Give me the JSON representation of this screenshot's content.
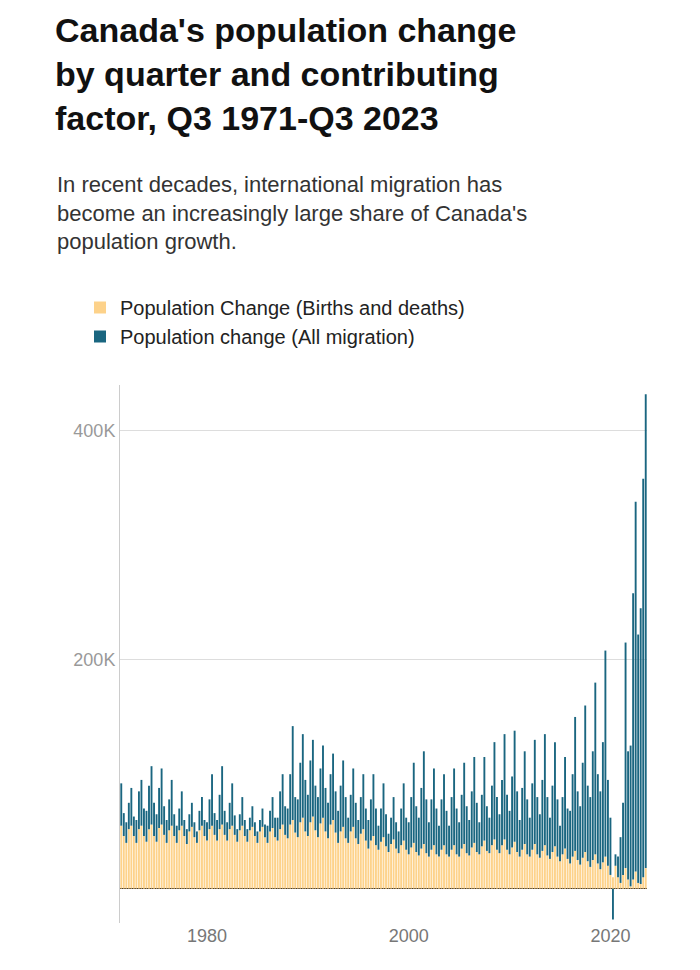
{
  "chart_data": {
    "type": "bar",
    "title": "Canada's population change by quarter and contributing factor, Q3 1971-Q3 2023",
    "subtitle": "In recent decades, international migration has become an increasingly large share of Canada's population growth.",
    "categories": [
      null,
      null,
      null,
      null,
      null,
      null,
      null,
      null,
      null,
      null,
      null,
      null,
      null,
      null,
      null,
      null,
      null,
      null,
      null,
      null,
      null,
      null,
      null,
      null,
      null,
      null,
      null,
      null,
      null,
      null,
      null,
      null,
      null,
      null,
      "1980",
      null,
      null,
      null,
      null,
      null,
      null,
      null,
      null,
      null,
      null,
      null,
      null,
      null,
      null,
      null,
      null,
      null,
      null,
      null,
      null,
      null,
      null,
      null,
      null,
      null,
      null,
      null,
      null,
      null,
      null,
      null,
      null,
      null,
      null,
      null,
      null,
      null,
      null,
      null,
      null,
      null,
      null,
      null,
      null,
      null,
      null,
      null,
      null,
      null,
      null,
      null,
      null,
      null,
      null,
      null,
      null,
      null,
      null,
      null,
      null,
      null,
      null,
      null,
      null,
      null,
      null,
      null,
      null,
      null,
      null,
      null,
      null,
      null,
      null,
      null,
      null,
      null,
      null,
      null,
      "2000",
      null,
      null,
      null,
      null,
      null,
      null,
      null,
      null,
      null,
      null,
      null,
      null,
      null,
      null,
      null,
      null,
      null,
      null,
      null,
      null,
      null,
      null,
      null,
      null,
      null,
      null,
      null,
      null,
      null,
      null,
      null,
      null,
      null,
      null,
      null,
      null,
      null,
      null,
      null,
      null,
      null,
      null,
      null,
      null,
      null,
      null,
      null,
      null,
      null,
      null,
      null,
      null,
      null,
      null,
      null,
      null,
      null,
      null,
      null,
      null,
      null,
      null,
      null,
      null,
      null,
      null,
      null,
      null,
      null,
      null,
      null,
      null,
      null,
      null,
      null,
      null,
      null,
      null,
      null,
      "2020",
      null,
      null,
      null,
      null,
      null,
      null,
      null,
      null,
      null,
      null,
      null,
      null,
      null,
      null
    ],
    "series": [
      {
        "name": "Population Change (Births and deaths)",
        "color": "#fdd28a",
        "values": [
          55000,
          46000,
          40000,
          52000,
          55000,
          46000,
          40000,
          52000,
          55000,
          46000,
          41000,
          52000,
          56000,
          46000,
          41000,
          53000,
          56000,
          47000,
          40000,
          51000,
          55000,
          46000,
          40000,
          51000,
          55000,
          46000,
          39000,
          50000,
          54000,
          45000,
          40000,
          51000,
          55000,
          46000,
          42000,
          52000,
          55000,
          47000,
          42000,
          52000,
          56000,
          47000,
          42000,
          52000,
          55000,
          47000,
          41000,
          51000,
          55000,
          46000,
          41000,
          51000,
          54000,
          46000,
          40000,
          50000,
          54000,
          45000,
          40000,
          50000,
          53000,
          45000,
          42000,
          52000,
          56000,
          47000,
          44000,
          56000,
          60000,
          49000,
          45000,
          58000,
          62000,
          50000,
          46000,
          58000,
          63000,
          51000,
          45000,
          57000,
          62000,
          50000,
          44000,
          56000,
          60000,
          49000,
          40000,
          50000,
          54000,
          44000,
          40000,
          50000,
          54000,
          44000,
          39000,
          48000,
          52000,
          42000,
          35000,
          42000,
          46000,
          38000,
          34000,
          41000,
          45000,
          37000,
          32000,
          39000,
          43000,
          35000,
          31000,
          38000,
          42000,
          34000,
          30000,
          36000,
          40000,
          32000,
          29000,
          35000,
          39000,
          31000,
          28000,
          34000,
          38000,
          30000,
          28000,
          34000,
          38000,
          30000,
          28000,
          34000,
          38000,
          30000,
          28000,
          35000,
          39000,
          31000,
          29000,
          36000,
          40000,
          32000,
          30000,
          37000,
          42000,
          33000,
          31000,
          38000,
          43000,
          34000,
          31000,
          38000,
          43000,
          34000,
          30000,
          36000,
          41000,
          32000,
          28000,
          34000,
          39000,
          30000,
          28000,
          34000,
          39000,
          30000,
          27000,
          33000,
          38000,
          29000,
          26000,
          32000,
          37000,
          28000,
          24000,
          30000,
          35000,
          26000,
          22000,
          28000,
          33000,
          25000,
          21000,
          27000,
          32000,
          24000,
          19000,
          25000,
          30000,
          22000,
          17000,
          23000,
          28000,
          20000,
          12000,
          10000,
          20000,
          10000,
          5000,
          12000,
          18000,
          8000,
          2000,
          8000,
          15000,
          5000,
          4000,
          10000,
          18000
        ]
      },
      {
        "name": "Population change (All migration)",
        "color": "#1a6680",
        "values": [
          37000,
          20000,
          18000,
          23000,
          33000,
          17000,
          20000,
          33000,
          40000,
          24000,
          27000,
          38000,
          51000,
          29000,
          24000,
          35000,
          49000,
          25000,
          20000,
          27000,
          40000,
          19000,
          15000,
          19000,
          30000,
          14000,
          13000,
          15000,
          21000,
          13000,
          10000,
          17000,
          25000,
          14000,
          16000,
          26000,
          45000,
          19000,
          18000,
          30000,
          51000,
          21000,
          16000,
          23000,
          37000,
          17000,
          11000,
          14000,
          25000,
          14000,
          11000,
          11000,
          18000,
          12000,
          10000,
          10000,
          16000,
          11000,
          15000,
          18000,
          27000,
          17000,
          20000,
          33000,
          44000,
          25000,
          26000,
          44000,
          82000,
          31000,
          33000,
          52000,
          73000,
          45000,
          36000,
          54000,
          67000,
          39000,
          35000,
          48000,
          63000,
          38000,
          31000,
          44000,
          58000,
          36000,
          28000,
          40000,
          58000,
          36000,
          22000,
          32000,
          51000,
          31000,
          21000,
          32000,
          48000,
          28000,
          25000,
          36000,
          54000,
          32000,
          21000,
          29000,
          47000,
          28000,
          16000,
          23000,
          37000,
          23000,
          19000,
          32000,
          50000,
          28000,
          28000,
          44000,
          70000,
          40000,
          33000,
          53000,
          81000,
          47000,
          30000,
          44000,
          67000,
          40000,
          27000,
          44000,
          62000,
          38000,
          27000,
          46000,
          67000,
          40000,
          30000,
          47000,
          71000,
          41000,
          31000,
          49000,
          75000,
          43000,
          28000,
          45000,
          73000,
          39000,
          31000,
          52000,
          85000,
          46000,
          34000,
          57000,
          92000,
          48000,
          38000,
          62000,
          97000,
          53000,
          32000,
          54000,
          81000,
          48000,
          34000,
          58000,
          91000,
          50000,
          38000,
          62000,
          97000,
          51000,
          36000,
          58000,
          91000,
          50000,
          31000,
          50000,
          80000,
          44000,
          46000,
          72000,
          117000,
          60000,
          51000,
          83000,
          128000,
          66000,
          61000,
          95000,
          150000,
          78000,
          68000,
          105000,
          180000,
          75000,
          50000,
          -27000,
          10000,
          18000,
          40000,
          63000,
          197000,
          112000,
          123000,
          250000,
          323000,
          217000,
          241000,
          348000,
          414000
        ]
      }
    ],
    "ylim": [
      -30000,
      440000
    ],
    "yticks": [
      {
        "value": 200000,
        "label": "200K"
      },
      {
        "value": 400000,
        "label": "400K"
      }
    ],
    "grid": true,
    "stacked": true,
    "legend": "top-left"
  }
}
